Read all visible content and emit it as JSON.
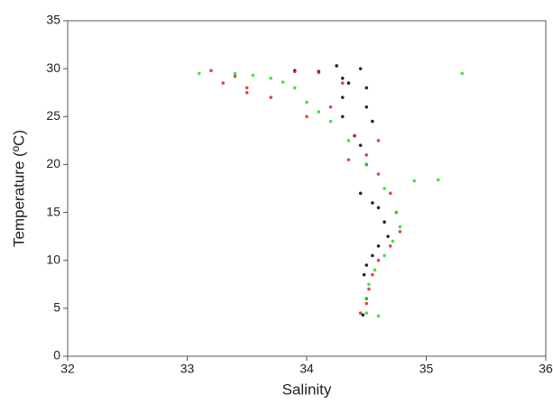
{
  "chart_data": {
    "type": "scatter",
    "x_label": "Salinity",
    "y_label": "Temperature (ºC)",
    "xlim": [
      32,
      36
    ],
    "ylim": [
      0,
      35
    ],
    "xticks": [
      32,
      33,
      34,
      35,
      36
    ],
    "yticks": [
      0,
      5,
      10,
      15,
      20,
      25,
      30,
      35
    ],
    "series": [
      {
        "color": "#000000",
        "x": [
          33.9,
          34.1,
          34.25,
          34.3,
          34.45,
          34.5,
          34.3,
          34.5,
          34.3,
          34.55,
          34.45,
          34.5,
          34.45,
          34.55,
          34.6,
          34.65,
          34.68,
          34.6,
          34.55,
          34.5,
          34.48,
          34.5,
          34.47,
          34.35,
          34.4
        ],
        "values": [
          29.8,
          29.7,
          30.3,
          29,
          30,
          28,
          27,
          26,
          25,
          24.5,
          22,
          20,
          17,
          16,
          15.5,
          14,
          12.5,
          11.5,
          10.5,
          9.5,
          8.5,
          6,
          4.3,
          28.5,
          23
        ]
      },
      {
        "color": "#d62a1e",
        "x": [
          33.2,
          33.3,
          33.5,
          33.7,
          33.9,
          34.1,
          34.3,
          34.2,
          34.4,
          34.5,
          34.6,
          34.7,
          34.75,
          34.78,
          34.7,
          34.6,
          34.55,
          34.52,
          34.5,
          34.45,
          33.5,
          34.0,
          34.6,
          33.4,
          34.35
        ],
        "values": [
          29.8,
          28.5,
          28,
          27,
          29.7,
          29.6,
          28.5,
          26,
          23,
          21,
          19,
          17,
          15,
          13,
          11.5,
          10,
          8.5,
          7,
          5.5,
          4.5,
          27.5,
          25,
          22.5,
          29.2,
          20.5
        ]
      },
      {
        "color": "#22dd22",
        "x": [
          33.1,
          33.4,
          33.7,
          33.9,
          34.0,
          34.2,
          34.35,
          34.5,
          34.65,
          34.75,
          34.78,
          34.72,
          34.65,
          34.57,
          34.52,
          34.5,
          34.5,
          34.6,
          34.9,
          35.1,
          35.3,
          33.55,
          33.8,
          34.1
        ],
        "values": [
          29.5,
          29.5,
          29,
          28,
          26.5,
          24.5,
          22.5,
          20,
          17.5,
          15,
          13.5,
          12,
          10.5,
          9,
          7.5,
          6,
          4.5,
          4.2,
          18.3,
          18.4,
          29.5,
          29.3,
          28.6,
          25.5
        ]
      }
    ]
  }
}
